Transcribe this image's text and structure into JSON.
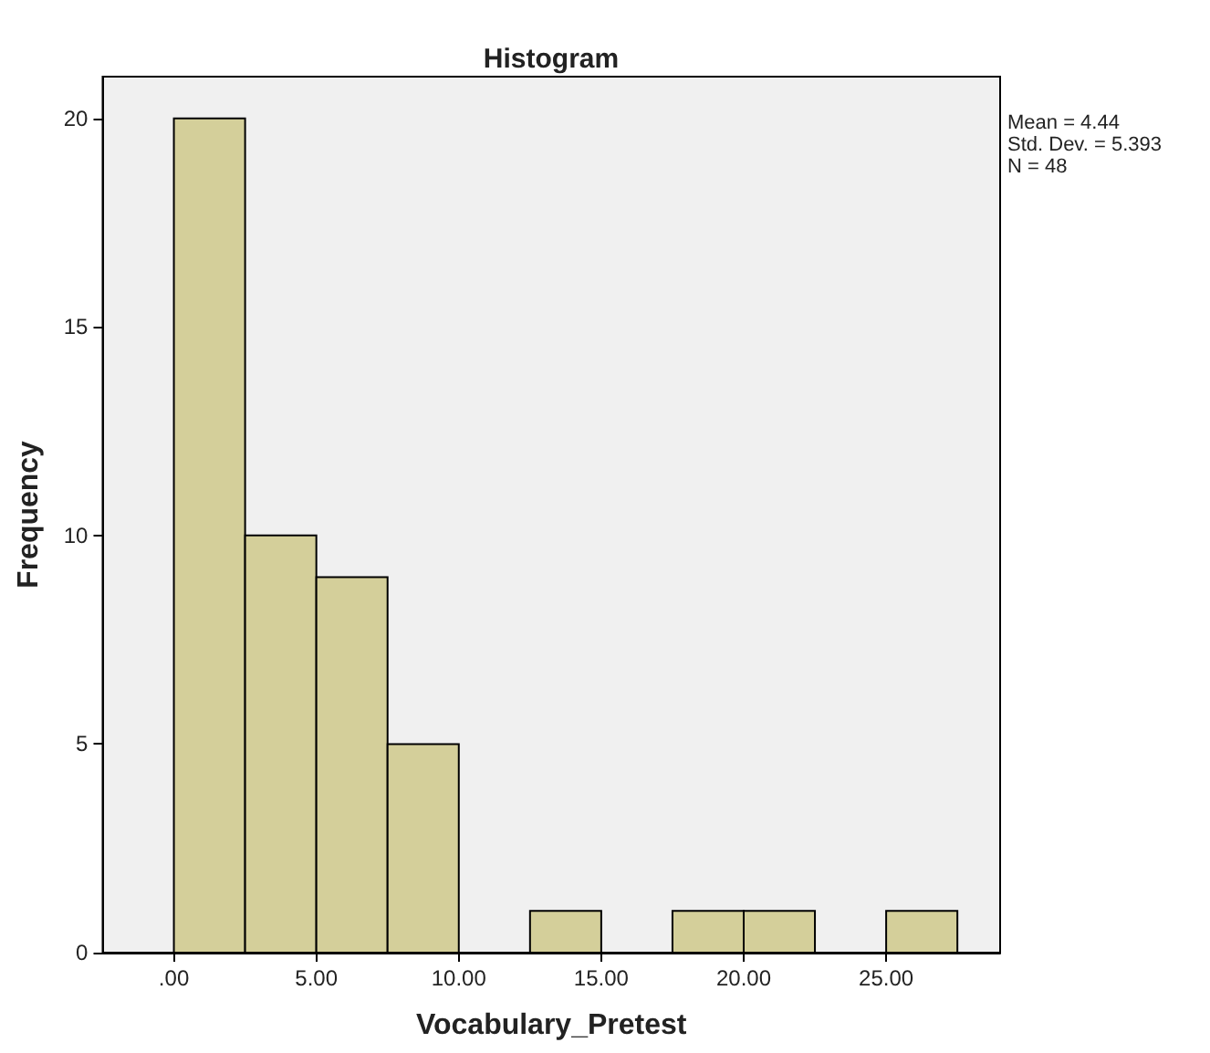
{
  "chart_data": {
    "type": "histogram",
    "title": "Histogram",
    "xlabel": "Vocabulary_Pretest",
    "ylabel": "Frequency",
    "bins": [
      0,
      2.5,
      5,
      7.5,
      10,
      12.5,
      15,
      17.5,
      20,
      22.5,
      25,
      27.5
    ],
    "values": [
      20,
      10,
      9,
      5,
      0,
      1,
      0,
      1,
      1,
      0,
      1
    ],
    "color": "#d4cf9a",
    "xlim": [
      -2.5,
      29
    ],
    "xticks": [
      {
        "value": 0,
        "label": ".00"
      },
      {
        "value": 5,
        "label": "5.00"
      },
      {
        "value": 10,
        "label": "10.00"
      },
      {
        "value": 15,
        "label": "15.00"
      },
      {
        "value": 20,
        "label": "20.00"
      },
      {
        "value": 25,
        "label": "25.00"
      }
    ],
    "ylim": [
      0,
      21
    ],
    "yticks": [
      0,
      5,
      10,
      15,
      20
    ],
    "grid": false,
    "annotations": [
      "Mean = 4.44",
      "Std. Dev. = 5.393",
      "N = 48"
    ]
  }
}
